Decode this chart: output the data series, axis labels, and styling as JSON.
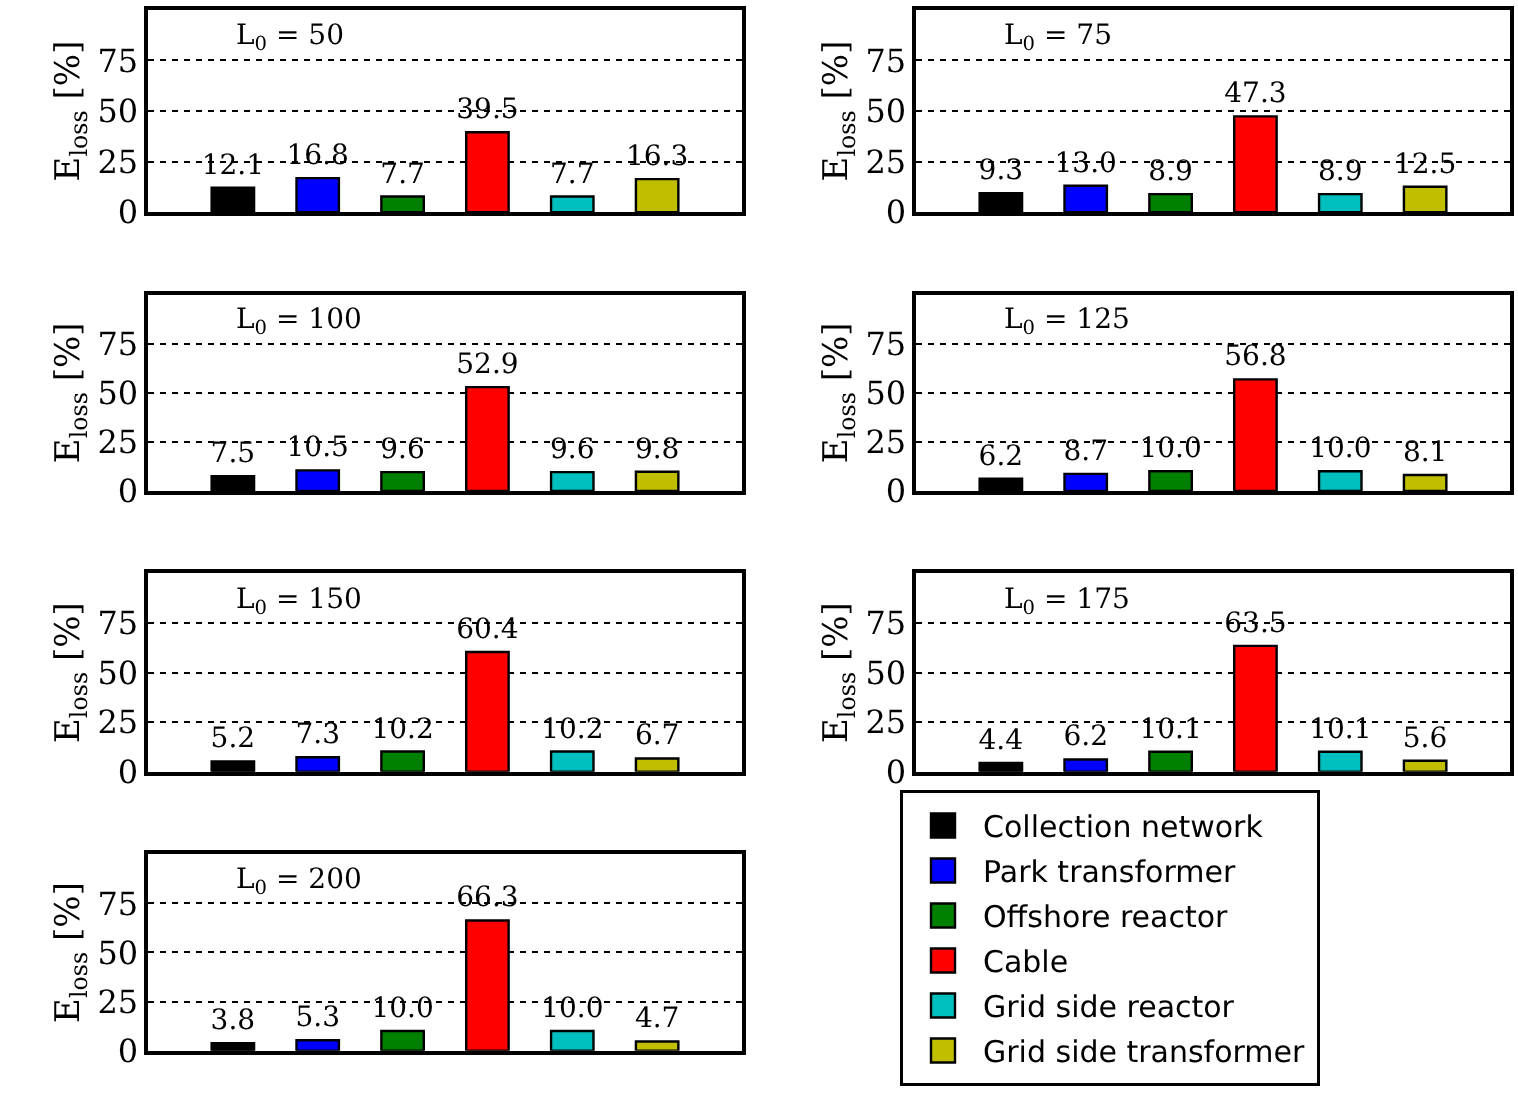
{
  "chart_data": [
    {
      "type": "bar",
      "annotations": [
        "L$_{0}$ = 50"
      ],
      "ylabel": "E$_{loss}$ [%]",
      "categories": [
        null,
        null,
        null,
        null,
        null,
        null
      ],
      "ylim": [
        0,
        100
      ],
      "yticks": [
        0,
        25,
        50,
        75
      ],
      "grid": "y",
      "data_labels": true,
      "series": [
        {
          "color": "#000000",
          "values": [
            12.1,
            null,
            null,
            null,
            null,
            null
          ]
        },
        {
          "color": "#0000ff",
          "values": [
            null,
            16.8,
            null,
            null,
            null,
            null
          ]
        },
        {
          "color": "#008000",
          "values": [
            null,
            null,
            7.7,
            null,
            null,
            null
          ]
        },
        {
          "color": "#ff0000",
          "values": [
            null,
            null,
            null,
            39.5,
            null,
            null
          ]
        },
        {
          "color": "#00bfbf",
          "values": [
            null,
            null,
            null,
            null,
            7.7,
            null
          ]
        },
        {
          "color": "#bfbf00",
          "values": [
            null,
            null,
            null,
            null,
            null,
            16.3
          ]
        }
      ]
    },
    {
      "type": "bar",
      "annotations": [
        "L$_{0}$ = 75"
      ],
      "ylabel": "E$_{loss}$ [%]",
      "categories": [
        null,
        null,
        null,
        null,
        null,
        null
      ],
      "ylim": [
        0,
        100
      ],
      "yticks": [
        0,
        25,
        50,
        75
      ],
      "grid": "y",
      "series": [
        {
          "color": "#000000",
          "values": [
            9.3,
            null,
            null,
            null,
            null,
            null
          ],
          "value_labels": [
            "9.3",
            null,
            null,
            null,
            null,
            null
          ]
        },
        {
          "color": "#0000ff",
          "values": [
            null,
            13.0,
            null,
            null,
            null,
            null
          ],
          "value_labels": [
            null,
            "13.0",
            null,
            null,
            null,
            null
          ]
        },
        {
          "color": "#008000",
          "values": [
            null,
            null,
            8.9,
            null,
            null,
            null
          ],
          "value_labels": [
            null,
            null,
            "8.9",
            null,
            null,
            null
          ]
        },
        {
          "color": "#ff0000",
          "values": [
            null,
            null,
            null,
            47.3,
            null,
            null
          ],
          "value_labels": [
            null,
            null,
            null,
            "47.3",
            null,
            null
          ]
        },
        {
          "color": "#00bfbf",
          "values": [
            null,
            null,
            null,
            null,
            8.9,
            null
          ],
          "value_labels": [
            null,
            null,
            null,
            null,
            "8.9",
            null
          ]
        },
        {
          "color": "#bfbf00",
          "values": [
            null,
            null,
            null,
            null,
            null,
            12.5
          ],
          "value_labels": [
            null,
            null,
            null,
            null,
            null,
            "12.5"
          ]
        }
      ]
    },
    {
      "type": "bar",
      "annotations": [
        "L$_{0}$ = 100"
      ],
      "ylabel": "E$_{loss}$ [%]",
      "categories": [
        null,
        null,
        null,
        null,
        null,
        null
      ],
      "ylim": [
        0,
        100
      ],
      "yticks": [
        0,
        25,
        50,
        75
      ],
      "grid": "y",
      "data_labels": true,
      "series": [
        {
          "color": "#000000",
          "values": [
            7.5,
            null,
            null,
            null,
            null,
            null
          ]
        },
        {
          "color": "#0000ff",
          "values": [
            null,
            10.5,
            null,
            null,
            null,
            null
          ]
        },
        {
          "color": "#008000",
          "values": [
            null,
            null,
            9.6,
            null,
            null,
            null
          ]
        },
        {
          "color": "#ff0000",
          "values": [
            null,
            null,
            null,
            52.9,
            null,
            null
          ]
        },
        {
          "color": "#00bfbf",
          "values": [
            null,
            null,
            null,
            null,
            9.6,
            null
          ]
        },
        {
          "color": "#bfbf00",
          "values": [
            null,
            null,
            null,
            null,
            null,
            9.8
          ]
        }
      ]
    },
    {
      "type": "bar",
      "annotations": [
        "L$_{0}$ = 125"
      ],
      "ylabel": "E$_{loss}$ [%]",
      "categories": [
        null,
        null,
        null,
        null,
        null,
        null
      ],
      "ylim": [
        0,
        100
      ],
      "yticks": [
        0,
        25,
        50,
        75
      ],
      "grid": "y",
      "series": [
        {
          "color": "#000000",
          "values": [
            6.2,
            null,
            null,
            null,
            null,
            null
          ],
          "value_labels": [
            "6.2",
            null,
            null,
            null,
            null,
            null
          ]
        },
        {
          "color": "#0000ff",
          "values": [
            null,
            8.7,
            null,
            null,
            null,
            null
          ],
          "value_labels": [
            null,
            "8.7",
            null,
            null,
            null,
            null
          ]
        },
        {
          "color": "#008000",
          "values": [
            null,
            null,
            10.0,
            null,
            null,
            null
          ],
          "value_labels": [
            null,
            null,
            "10.0",
            null,
            null,
            null
          ]
        },
        {
          "color": "#ff0000",
          "values": [
            null,
            null,
            null,
            56.8,
            null,
            null
          ],
          "value_labels": [
            null,
            null,
            null,
            "56.8",
            null,
            null
          ]
        },
        {
          "color": "#00bfbf",
          "values": [
            null,
            null,
            null,
            null,
            10.0,
            null
          ],
          "value_labels": [
            null,
            null,
            null,
            null,
            "10.0",
            null
          ]
        },
        {
          "color": "#bfbf00",
          "values": [
            null,
            null,
            null,
            null,
            null,
            8.1
          ],
          "value_labels": [
            null,
            null,
            null,
            null,
            null,
            "8.1"
          ]
        }
      ]
    },
    {
      "type": "bar",
      "annotations": [
        "L$_{0}$ = 150"
      ],
      "ylabel": "E$_{loss}$ [%]",
      "categories": [
        null,
        null,
        null,
        null,
        null,
        null
      ],
      "ylim": [
        0,
        100
      ],
      "yticks": [
        0,
        25,
        50,
        75
      ],
      "grid": "y",
      "data_labels": true,
      "series": [
        {
          "color": "#000000",
          "values": [
            5.2,
            null,
            null,
            null,
            null,
            null
          ]
        },
        {
          "color": "#0000ff",
          "values": [
            null,
            7.3,
            null,
            null,
            null,
            null
          ]
        },
        {
          "color": "#008000",
          "values": [
            null,
            null,
            10.2,
            null,
            null,
            null
          ]
        },
        {
          "color": "#ff0000",
          "values": [
            null,
            null,
            null,
            60.4,
            null,
            null
          ]
        },
        {
          "color": "#00bfbf",
          "values": [
            null,
            null,
            null,
            null,
            10.2,
            null
          ]
        },
        {
          "color": "#bfbf00",
          "values": [
            null,
            null,
            null,
            null,
            null,
            6.7
          ]
        }
      ]
    },
    {
      "type": "bar",
      "annotations": [
        "L$_{0}$ = 175"
      ],
      "ylabel": "E$_{loss}$ [%]",
      "categories": [
        null,
        null,
        null,
        null,
        null,
        null
      ],
      "ylim": [
        0,
        100
      ],
      "yticks": [
        0,
        25,
        50,
        75
      ],
      "grid": "y",
      "data_labels": true,
      "series": [
        {
          "color": "#000000",
          "values": [
            4.4,
            null,
            null,
            null,
            null,
            null
          ]
        },
        {
          "color": "#0000ff",
          "values": [
            null,
            6.2,
            null,
            null,
            null,
            null
          ]
        },
        {
          "color": "#008000",
          "values": [
            null,
            null,
            10.1,
            null,
            null,
            null
          ]
        },
        {
          "color": "#ff0000",
          "values": [
            null,
            null,
            null,
            63.5,
            null,
            null
          ]
        },
        {
          "color": "#00bfbf",
          "values": [
            null,
            null,
            null,
            null,
            10.1,
            null
          ]
        },
        {
          "color": "#bfbf00",
          "values": [
            null,
            null,
            null,
            null,
            null,
            5.6
          ]
        }
      ]
    },
    {
      "type": "bar",
      "annotations": [
        "L$_{0}$ = 200"
      ],
      "ylabel": "E$_{loss}$ [%]",
      "categories": [
        null,
        null,
        null,
        null,
        null,
        null
      ],
      "ylim": [
        0,
        100
      ],
      "yticks": [
        0,
        25,
        50,
        75
      ],
      "grid": "y",
      "legend": "right",
      "series": [
        {
          "name": "Collection network",
          "color": "#000000",
          "values": [
            3.8,
            null,
            null,
            null,
            null,
            null
          ],
          "value_labels": [
            "3.8",
            null,
            null,
            null,
            null,
            null
          ]
        },
        {
          "name": "Park transformer",
          "color": "#0000ff",
          "values": [
            null,
            5.3,
            null,
            null,
            null,
            null
          ],
          "value_labels": [
            null,
            "5.3",
            null,
            null,
            null,
            null
          ]
        },
        {
          "name": "Offshore reactor",
          "color": "#008000",
          "values": [
            null,
            null,
            10.0,
            null,
            null,
            null
          ],
          "value_labels": [
            null,
            null,
            "10.0",
            null,
            null,
            null
          ]
        },
        {
          "name": "Cable",
          "color": "#ff0000",
          "values": [
            null,
            null,
            null,
            66.3,
            null,
            null
          ],
          "value_labels": [
            null,
            null,
            null,
            "66.3",
            null,
            null
          ]
        },
        {
          "name": "Grid side reactor",
          "color": "#00bfbf",
          "values": [
            null,
            null,
            null,
            null,
            10.0,
            null
          ],
          "value_labels": [
            null,
            null,
            null,
            null,
            "10.0",
            null
          ]
        },
        {
          "name": "Grid side transformer",
          "color": "#bfbf00",
          "values": [
            null,
            null,
            null,
            null,
            null,
            4.7
          ],
          "value_labels": [
            null,
            null,
            null,
            null,
            null,
            "4.7"
          ]
        }
      ]
    }
  ]
}
